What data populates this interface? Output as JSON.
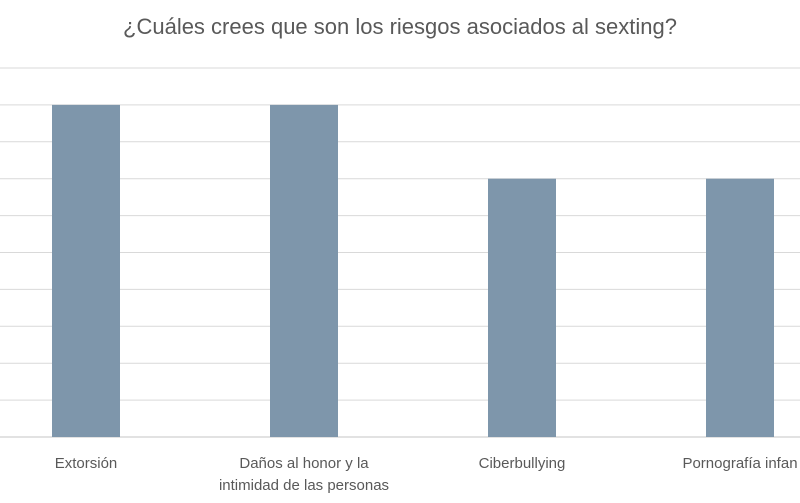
{
  "chart_data": {
    "type": "bar",
    "title": "¿Cuáles crees que son los riesgos asociados al sexting?",
    "categories": [
      [
        "Extorsión"
      ],
      [
        "Daños al honor y la",
        "intimidad de las personas"
      ],
      [
        "Ciberbullying"
      ],
      [
        "Pornografía infan"
      ]
    ],
    "values": [
      9,
      9,
      7,
      7
    ],
    "ylim": [
      0,
      10
    ],
    "grid": true,
    "legend": "none",
    "bar_color": "#7e96ab",
    "grid_color": "#d9d9d9"
  }
}
